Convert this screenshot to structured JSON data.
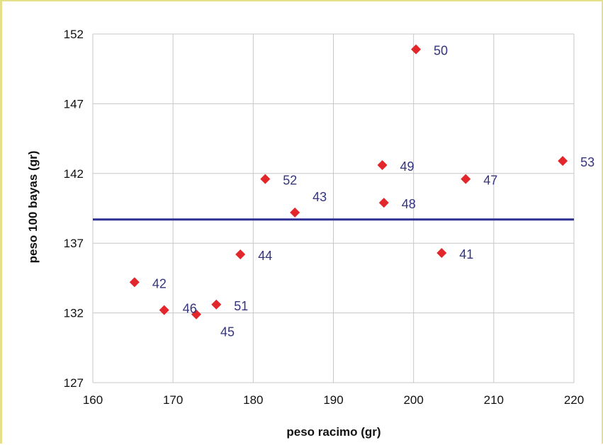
{
  "chart_data": {
    "type": "scatter",
    "xlabel": "peso racimo (gr)",
    "ylabel": "peso 100 bayas (gr)",
    "xlim": [
      160,
      220
    ],
    "ylim": [
      127,
      152
    ],
    "x_ticks": [
      160,
      170,
      180,
      190,
      200,
      210,
      220
    ],
    "y_ticks": [
      127,
      132,
      137,
      142,
      147,
      152
    ],
    "grid": true,
    "reference_line_y": 138.7,
    "colors": {
      "marker": "#e3262b",
      "label": "#35347f",
      "reference_line": "#2e3192",
      "grid": "#c7c7c7",
      "axis_text": "#111111"
    },
    "points": [
      {
        "label": "50",
        "x": 200.3,
        "y": 150.9
      },
      {
        "label": "53",
        "x": 218.6,
        "y": 142.9
      },
      {
        "label": "49",
        "x": 196.1,
        "y": 142.6
      },
      {
        "label": "47",
        "x": 206.5,
        "y": 141.6
      },
      {
        "label": "52",
        "x": 181.5,
        "y": 141.6
      },
      {
        "label": "48",
        "x": 196.3,
        "y": 139.9
      },
      {
        "label": "43",
        "x": 185.2,
        "y": 139.2
      },
      {
        "label": "41",
        "x": 203.5,
        "y": 136.3
      },
      {
        "label": "44",
        "x": 178.4,
        "y": 136.2
      },
      {
        "label": "42",
        "x": 165.2,
        "y": 134.2
      },
      {
        "label": "51",
        "x": 175.4,
        "y": 132.6
      },
      {
        "label": "46",
        "x": 168.9,
        "y": 132.2
      },
      {
        "label": "45",
        "x": 172.9,
        "y": 131.9
      }
    ]
  }
}
